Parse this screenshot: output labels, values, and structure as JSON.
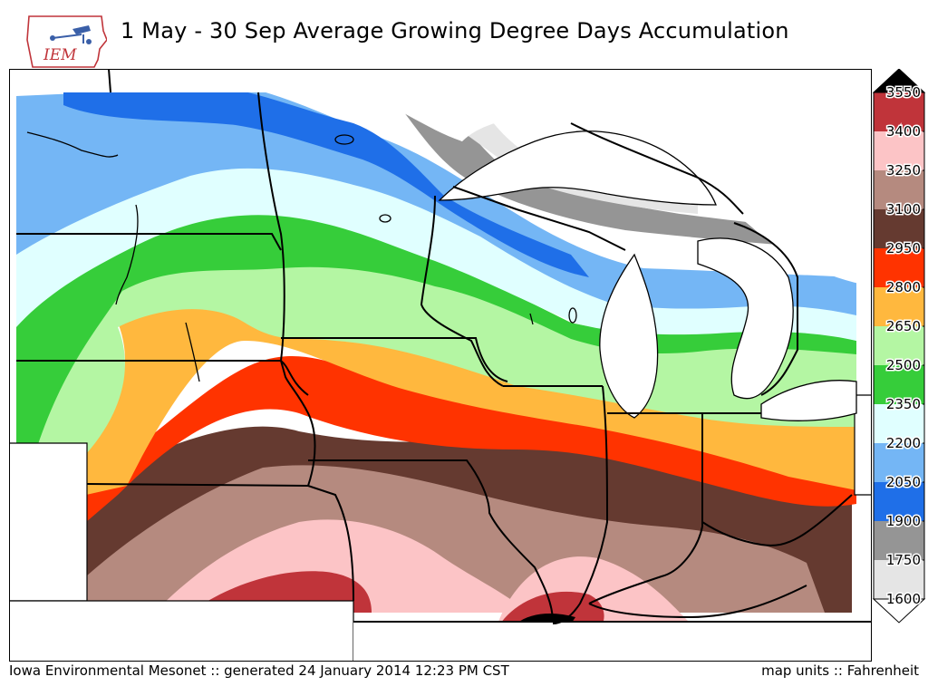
{
  "header": {
    "logo_text": "IEM",
    "title": "1 May - 30 Sep Average Growing Degree Days Accumulation"
  },
  "legend": {
    "levels": [
      {
        "value": "3550",
        "color": "#000000"
      },
      {
        "value": "3400",
        "color": "#c0343a"
      },
      {
        "value": "3250",
        "color": "#fcc4c6"
      },
      {
        "value": "3100",
        "color": "#b58a7f"
      },
      {
        "value": "2950",
        "color": "#653a30"
      },
      {
        "value": "2800",
        "color": "#ff3300"
      },
      {
        "value": "2650",
        "color": "#ffb83e"
      },
      {
        "value": "2500",
        "color": "#b4f6a3"
      },
      {
        "value": "2350",
        "color": "#36cd3a"
      },
      {
        "value": "2200",
        "color": "#e0ffff"
      },
      {
        "value": "2050",
        "color": "#74b6f5"
      },
      {
        "value": "1900",
        "color": "#1f6fe8"
      },
      {
        "value": "1750",
        "color": "#959595"
      },
      {
        "value": "1600",
        "color": "#e5e5e5"
      }
    ]
  },
  "footer": {
    "left": "Iowa Environmental Mesonet :: generated 24 January 2014 12:23 PM CST",
    "right": "map units :: Fahrenheit"
  }
}
